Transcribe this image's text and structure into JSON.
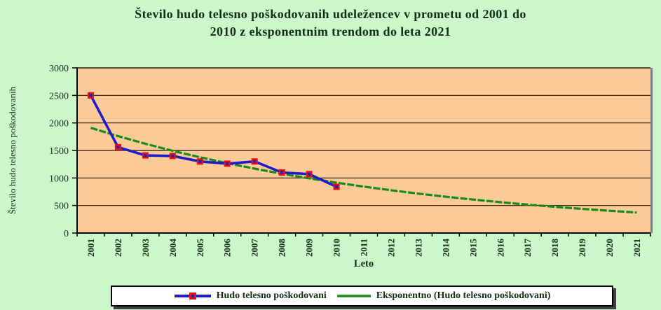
{
  "page": {
    "background": "#ccf7cb",
    "ink": "#142d14",
    "axis_color": "#000000",
    "grid_color": "#241409",
    "plot_shadow_color": "#7f7f7f",
    "legend_background": "#ffffff",
    "legend_border": "#000000"
  },
  "chart_data": {
    "type": "line",
    "title": "Število hudo telesno poškodovanih udeležencev v prometu od 2001 do 2010 z eksponentnim trendom do leta 2021",
    "title_lines": [
      "Število hudo telesno poškodovanih udeležencev v prometu od 2001 do",
      "2010 z eksponentnim trendom do leta 2021"
    ],
    "xlabel": "Leto",
    "ylabel": "Število hudo telesno poškodovanih",
    "categories": [
      "2001",
      "2002",
      "2003",
      "2004",
      "2005",
      "2006",
      "2007",
      "2008",
      "2009",
      "2010",
      "2011",
      "2012",
      "2013",
      "2014",
      "2015",
      "2016",
      "2017",
      "2018",
      "2019",
      "2020",
      "2021"
    ],
    "ylim": [
      0,
      3000
    ],
    "ytick_step": 500,
    "yticks": [
      0,
      500,
      1000,
      1500,
      2000,
      2500,
      3000
    ],
    "grid": true,
    "legend_position": "bottom",
    "plot_bg": "#fcca97",
    "series": [
      {
        "name": "Hudo telesno poškodovani",
        "kind": "data",
        "color": "#1c1ccd",
        "marker": {
          "shape": "square",
          "fill": "#e01414",
          "inner": "#1c1ccd"
        },
        "values": [
          2500,
          1560,
          1410,
          1400,
          1300,
          1260,
          1300,
          1100,
          1070,
          840
        ]
      },
      {
        "name": "Eksponentno (Hudo telesno poškodovani)",
        "kind": "trendline",
        "color": "#168a16",
        "dashed": true,
        "values": [
          1910,
          1760,
          1622,
          1494,
          1377,
          1269,
          1169,
          1077,
          993,
          915,
          843,
          777,
          716,
          660,
          608,
          560,
          516,
          476,
          438,
          404,
          372
        ]
      }
    ]
  }
}
